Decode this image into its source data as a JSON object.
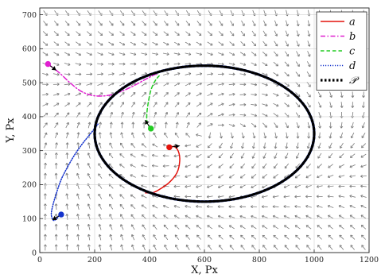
{
  "chart_data": {
    "type": "line",
    "xlabel": "X, Px",
    "ylabel": "Y, Px",
    "xlim": [
      0,
      1200
    ],
    "ylim": [
      0,
      720
    ],
    "x_ticks": [
      0,
      200,
      400,
      600,
      800,
      1000,
      1200
    ],
    "y_ticks": [
      0,
      100,
      200,
      300,
      400,
      500,
      600,
      700
    ],
    "grid": true,
    "legend_position": "top-right",
    "background_field": {
      "kind": "vector-field",
      "color": "#7a7a7a",
      "description_free": true,
      "ellipse_center": [
        600,
        350
      ],
      "ellipse_semi_axes": [
        400,
        200
      ]
    },
    "series": [
      {
        "name": "a",
        "color": "#e3120b",
        "dash": "solid",
        "points": [
          [
            472,
            310
          ],
          [
            490,
            312
          ],
          [
            505,
            298
          ],
          [
            510,
            270
          ],
          [
            500,
            235
          ],
          [
            470,
            205
          ],
          [
            430,
            183
          ],
          [
            410,
            176
          ],
          [
            385,
            176
          ]
        ],
        "start_marker": [
          472,
          310
        ]
      },
      {
        "name": "b",
        "color": "#e020d0",
        "dash": "dashdot",
        "points": [
          [
            30,
            555
          ],
          [
            70,
            530
          ],
          [
            110,
            500
          ],
          [
            150,
            475
          ],
          [
            195,
            462
          ],
          [
            245,
            462
          ],
          [
            290,
            472
          ],
          [
            340,
            490
          ],
          [
            390,
            512
          ],
          [
            430,
            528
          ]
        ],
        "start_marker": [
          30,
          555
        ]
      },
      {
        "name": "c",
        "color": "#22cc22",
        "dash": "dashed",
        "points": [
          [
            405,
            365
          ],
          [
            392,
            380
          ],
          [
            390,
            405
          ],
          [
            395,
            440
          ],
          [
            405,
            478
          ],
          [
            420,
            505
          ],
          [
            435,
            520
          ]
        ],
        "start_marker": [
          405,
          365
        ]
      },
      {
        "name": "d",
        "color": "#1533cc",
        "dash": "dotted",
        "points": [
          [
            78,
            112
          ],
          [
            70,
            108
          ],
          [
            62,
            100
          ],
          [
            50,
            95
          ],
          [
            42,
            112
          ],
          [
            48,
            140
          ],
          [
            62,
            178
          ],
          [
            78,
            215
          ],
          [
            100,
            250
          ],
          [
            125,
            285
          ],
          [
            155,
            320
          ],
          [
            185,
            350
          ],
          [
            212,
            378
          ]
        ],
        "start_marker": [
          78,
          112
        ]
      },
      {
        "name": "𝒫",
        "color": "#000000",
        "dash": "dotted-thick",
        "kind": "ellipse",
        "center": [
          600,
          350
        ],
        "semi_axes": [
          400,
          200
        ]
      }
    ]
  }
}
